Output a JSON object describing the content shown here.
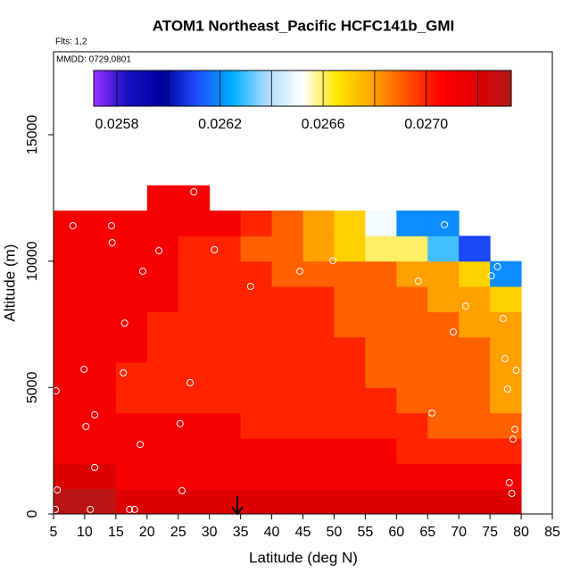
{
  "chart_data": {
    "type": "heatmap",
    "title": "ATOM1 Northeast_Pacific HCFC141b_GMI",
    "annotations": [
      "Flts: 1,2",
      "MMDD: 0729,0801"
    ],
    "xlabel": "Latitude (deg N)",
    "ylabel": "Altitude (m)",
    "xlim": [
      5,
      85
    ],
    "ylim": [
      0,
      18280
    ],
    "xticks": [
      5,
      10,
      15,
      20,
      25,
      30,
      35,
      40,
      45,
      50,
      55,
      60,
      65,
      70,
      75,
      80,
      85
    ],
    "yticks": [
      0,
      5000,
      10000,
      15000
    ],
    "x_bins": [
      5,
      10,
      15,
      20,
      25,
      30,
      35,
      40,
      45,
      50,
      55,
      60,
      65,
      70,
      75,
      80
    ],
    "y_bins": [
      0,
      1000,
      2000,
      3000,
      4000,
      5000,
      6000,
      7000,
      8000,
      9000,
      10000,
      11000,
      12000,
      13000
    ],
    "z": [
      [
        0.0273,
        0.0273,
        0.0272,
        0.0272,
        0.0272,
        0.0272,
        0.0272,
        0.0272,
        0.0272,
        0.0272,
        0.0272,
        0.0272,
        0.0272,
        0.0272,
        0.0272
      ],
      [
        0.0272,
        0.0272,
        0.0271,
        0.0271,
        0.0271,
        0.0271,
        0.0271,
        0.0271,
        0.0271,
        0.0271,
        0.0271,
        0.0271,
        0.0271,
        0.0271,
        0.0271
      ],
      [
        0.0271,
        0.0271,
        0.0271,
        0.0271,
        0.0271,
        0.0271,
        0.0271,
        0.0271,
        0.0271,
        0.0271,
        0.0271,
        0.027,
        0.027,
        0.027,
        0.027
      ],
      [
        0.0271,
        0.0271,
        0.0271,
        0.0271,
        0.0271,
        0.0271,
        0.027,
        0.027,
        0.027,
        0.027,
        0.027,
        0.027,
        0.0269,
        0.0269,
        0.0269
      ],
      [
        0.0271,
        0.0271,
        0.027,
        0.027,
        0.027,
        0.027,
        0.027,
        0.027,
        0.027,
        0.027,
        0.027,
        0.0269,
        0.0269,
        0.0269,
        0.0268
      ],
      [
        0.0271,
        0.0271,
        0.027,
        0.027,
        0.027,
        0.027,
        0.027,
        0.027,
        0.027,
        0.027,
        0.0269,
        0.0269,
        0.0269,
        0.0269,
        0.0268
      ],
      [
        0.0271,
        0.0271,
        0.0271,
        0.027,
        0.027,
        0.027,
        0.027,
        0.027,
        0.027,
        0.027,
        0.0269,
        0.0269,
        0.0269,
        0.0269,
        0.0268
      ],
      [
        0.0271,
        0.0271,
        0.0271,
        0.027,
        0.027,
        0.027,
        0.027,
        0.027,
        0.027,
        0.0269,
        0.0269,
        0.0269,
        0.0269,
        0.0268,
        0.0268
      ],
      [
        0.0271,
        0.0271,
        0.0271,
        0.0271,
        0.027,
        0.027,
        0.027,
        0.027,
        0.027,
        0.0269,
        0.0269,
        0.0269,
        0.0268,
        0.0268,
        0.0267
      ],
      [
        0.0271,
        0.0271,
        0.0271,
        0.0271,
        0.027,
        0.027,
        0.027,
        0.0269,
        0.0269,
        0.0269,
        0.0269,
        0.0268,
        0.0268,
        0.0267,
        0.0262
      ],
      [
        0.0271,
        0.0271,
        0.0271,
        0.0271,
        0.027,
        0.027,
        0.0269,
        0.0269,
        0.0268,
        0.0267,
        0.0266,
        0.0266,
        0.0263,
        0.0261,
        null
      ],
      [
        0.0271,
        0.0271,
        0.0271,
        0.0271,
        0.0271,
        0.0271,
        0.027,
        0.0269,
        0.0268,
        0.0267,
        0.0265,
        0.0262,
        0.0262,
        null,
        null
      ],
      [
        null,
        null,
        null,
        0.0271,
        0.0271,
        null,
        null,
        null,
        null,
        null,
        null,
        null,
        null,
        null,
        null
      ]
    ],
    "colorbar": {
      "lim": [
        0.02571,
        0.02733
      ],
      "ticks": [
        0.0258,
        0.0262,
        0.0266,
        {
          "value": 0.027,
          "label": "0.0270"
        }
      ],
      "minor_ticks": [
        0.026,
        0.0264,
        0.0268,
        0.0272
      ],
      "colors": [
        "#9b30ff",
        "#1010c0",
        "#0000a0",
        "#1e50ff",
        "#00b0ff",
        "#b0dcff",
        "#ffffff",
        "#ffe600",
        "#ffa500",
        "#ff5000",
        "#ff0000",
        "#e00000",
        "#b01818"
      ]
    },
    "points": {
      "color": "#ffffff",
      "x": [
        8.1,
        14.3,
        14.4,
        21.9,
        30.8,
        19.3,
        27.5,
        44.5,
        49.8,
        36.6,
        63.5,
        67.7,
        76.2,
        75.2,
        71.1,
        69.1,
        77.1,
        16.4,
        5.4,
        9.9,
        16.2,
        26.9,
        77.4,
        77.8,
        79.2,
        65.7,
        11.6,
        10.2,
        25.3,
        18.9,
        79.0,
        78.7,
        11.6,
        5.6,
        25.6,
        78.1,
        78.5,
        5.3,
        10.9,
        17.2,
        18.0
      ],
      "y": [
        11400,
        11400,
        10730,
        10410,
        10450,
        9600,
        12740,
        9600,
        10020,
        9000,
        9210,
        11440,
        9780,
        9420,
        8220,
        7200,
        7730,
        7550,
        4870,
        5720,
        5580,
        5190,
        6140,
        4940,
        5680,
        3990,
        3920,
        3460,
        3570,
        2750,
        3350,
        2960,
        1840,
        950,
        920,
        1240,
        810,
        180,
        180,
        180,
        180
      ]
    }
  }
}
